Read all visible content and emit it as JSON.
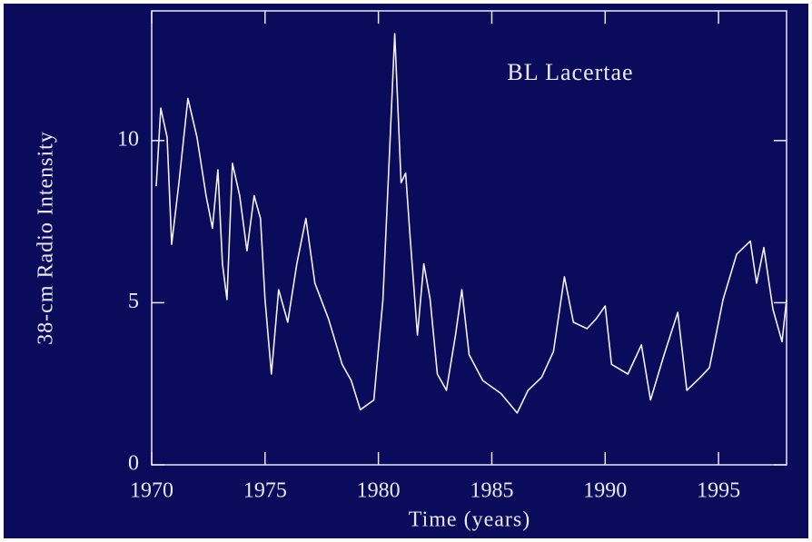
{
  "chart_data": {
    "type": "line",
    "annotation": "BL Lacertae",
    "x_label": "Time (years)",
    "y_label": "38-cm Radio Intensity",
    "xlim": [
      1970,
      1998
    ],
    "ylim": [
      0,
      14
    ],
    "xticks": [
      1970,
      1975,
      1980,
      1985,
      1990,
      1995
    ],
    "yticks": [
      0,
      5,
      10
    ],
    "grid": false,
    "background": "#0b0b5c",
    "axis_color": "#e8e8f0",
    "x": [
      1970.2,
      1970.4,
      1970.68,
      1970.88,
      1971.2,
      1971.6,
      1972.0,
      1972.4,
      1972.68,
      1972.92,
      1973.12,
      1973.32,
      1973.56,
      1973.88,
      1974.2,
      1974.52,
      1974.8,
      1975.0,
      1975.28,
      1975.6,
      1976.0,
      1976.4,
      1976.8,
      1977.2,
      1977.8,
      1978.4,
      1978.8,
      1979.2,
      1979.8,
      1980.2,
      1980.52,
      1980.72,
      1981.0,
      1981.2,
      1981.4,
      1981.72,
      1982.0,
      1982.28,
      1982.6,
      1983.0,
      1983.4,
      1983.68,
      1984.0,
      1984.6,
      1985.4,
      1986.12,
      1986.6,
      1987.2,
      1987.72,
      1988.2,
      1988.6,
      1989.2,
      1989.6,
      1990.0,
      1990.28,
      1991.0,
      1991.6,
      1992.0,
      1992.6,
      1993.2,
      1993.6,
      1994.2,
      1994.6,
      1995.2,
      1995.8,
      1996.4,
      1996.68,
      1997.0,
      1997.4,
      1997.8,
      1998.0
    ],
    "series": [
      {
        "name": "BL Lacertae",
        "color": "#f0f0f0",
        "values": [
          8.6,
          11,
          10.1,
          6.8,
          8.7,
          11.3,
          10.1,
          8.3,
          7.3,
          9.1,
          6.2,
          5.1,
          9.3,
          8.3,
          6.6,
          8.3,
          7.6,
          5.1,
          2.8,
          5.4,
          4.4,
          6.2,
          7.6,
          5.6,
          4.5,
          3.1,
          2.6,
          1.7,
          2.0,
          5.1,
          10.1,
          13.3,
          8.7,
          9.0,
          7.0,
          4.0,
          6.2,
          5.1,
          2.8,
          2.3,
          4.0,
          5.4,
          3.4,
          2.6,
          2.2,
          1.6,
          2.3,
          2.7,
          3.5,
          5.8,
          4.4,
          4.2,
          4.5,
          4.9,
          3.1,
          2.8,
          3.7,
          2.0,
          3.4,
          4.7,
          2.3,
          2.7,
          3.0,
          5.1,
          6.5,
          6.9,
          5.6,
          6.7,
          4.8,
          3.8,
          5.1
        ]
      }
    ]
  }
}
